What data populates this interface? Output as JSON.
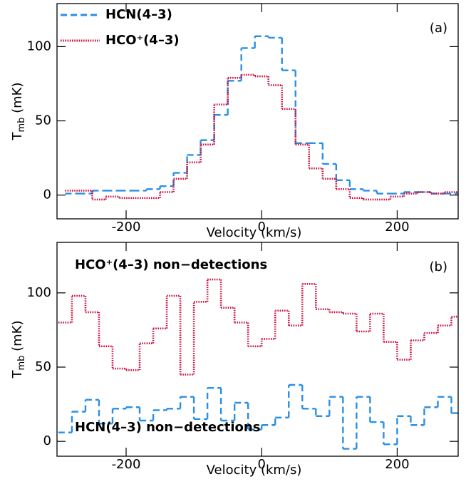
{
  "chart_data": [
    {
      "type": "step",
      "panel_label": "(a)",
      "xlabel": "Velocity (km/s)",
      "ylabel": [
        "T",
        "mb",
        " (mK)"
      ],
      "xlim": [
        -302,
        290
      ],
      "ylim": [
        -16,
        129
      ],
      "xticks": [
        -200,
        0,
        200
      ],
      "yticks": [
        0,
        50,
        100
      ],
      "legend": "upper left",
      "x": [
        -280,
        -260,
        -240,
        -220,
        -200,
        -180,
        -160,
        -140,
        -120,
        -100,
        -80,
        -60,
        -40,
        -20,
        0,
        20,
        40,
        60,
        80,
        100,
        120,
        140,
        160,
        180,
        200,
        220,
        240,
        260,
        280
      ],
      "series": [
        {
          "name": "HCN(4–3)",
          "color": "#2b8fe3",
          "dash": "dashed",
          "values": [
            1,
            1,
            3,
            3,
            3,
            3,
            4,
            6,
            15,
            27,
            37,
            54,
            77,
            99,
            107,
            106,
            84,
            35,
            35,
            21,
            10,
            4,
            3,
            1,
            1,
            2,
            2,
            1,
            1
          ]
        },
        {
          "name": "HCO⁺(4–3)",
          "color": "#cc1040",
          "dash": "dotted",
          "values": [
            3,
            3,
            -3,
            -1,
            -2,
            -2,
            -2,
            2,
            11,
            22,
            34,
            61,
            79,
            81,
            80,
            74,
            58,
            34,
            18,
            11,
            4,
            -2,
            -3,
            -3,
            -1,
            1,
            2,
            1,
            2
          ]
        }
      ]
    },
    {
      "type": "step",
      "panel_label": "(b)",
      "xlabel": "Velocity (km/s)",
      "ylabel": [
        "T",
        "mb",
        " (mK)"
      ],
      "xlim": [
        -302,
        290
      ],
      "ylim": [
        -10,
        134
      ],
      "xticks": [
        -200,
        0,
        200
      ],
      "yticks": [
        0,
        50,
        100
      ],
      "legend": "text",
      "x": [
        -290,
        -270,
        -250,
        -230,
        -210,
        -190,
        -170,
        -150,
        -130,
        -110,
        -90,
        -70,
        -50,
        -30,
        -10,
        10,
        30,
        50,
        70,
        90,
        110,
        130,
        150,
        170,
        190,
        210,
        230,
        250,
        270,
        290
      ],
      "series": [
        {
          "name": "HCO⁺(4–3) non−detections",
          "color": "#cc1040",
          "dash": "dotted",
          "values": [
            80,
            98,
            87,
            64,
            49,
            48,
            66,
            76,
            98,
            45,
            94,
            109,
            90,
            80,
            64,
            69,
            88,
            78,
            106,
            89,
            87,
            86,
            74,
            86,
            67,
            55,
            68,
            73,
            78,
            84
          ]
        },
        {
          "name": "HCN(4–3) non−detections",
          "color": "#2b8fe3",
          "dash": "dashed",
          "values": [
            6,
            20,
            28,
            12,
            22,
            23,
            14,
            21,
            22,
            30,
            15,
            36,
            14,
            26,
            8,
            11,
            16,
            38,
            22,
            17,
            30,
            -5,
            30,
            13,
            -2,
            17,
            11,
            23,
            30,
            19
          ]
        }
      ]
    }
  ]
}
